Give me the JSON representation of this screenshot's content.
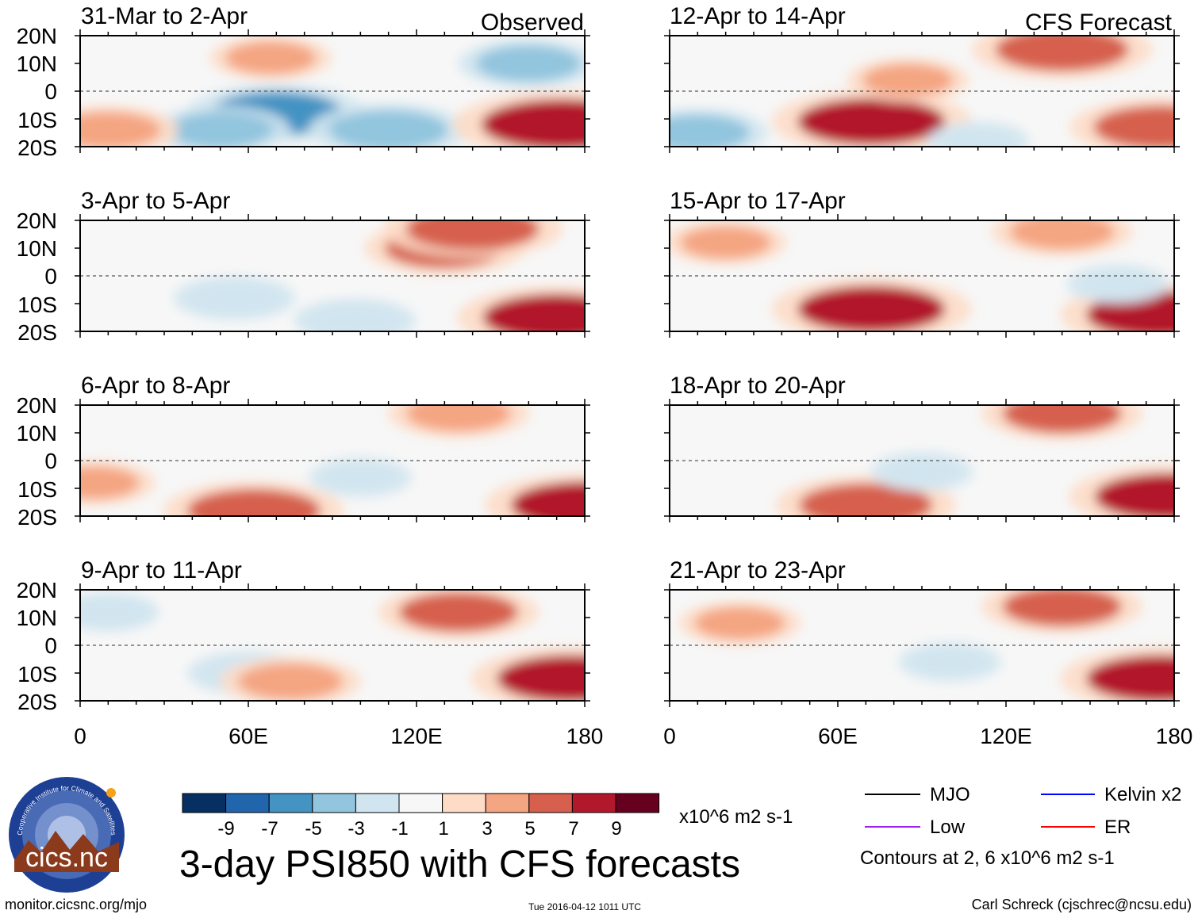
{
  "chart_data": {
    "type": "heatmap",
    "title": "3-day PSI850 with CFS forecasts",
    "column_headers": [
      "Observed",
      "CFS Forecast"
    ],
    "panels": [
      {
        "column": 0,
        "row": 0,
        "label": "31-Mar to 2-Apr"
      },
      {
        "column": 0,
        "row": 1,
        "label": "3-Apr to 5-Apr"
      },
      {
        "column": 0,
        "row": 2,
        "label": "6-Apr to 8-Apr"
      },
      {
        "column": 0,
        "row": 3,
        "label": "9-Apr to 11-Apr"
      },
      {
        "column": 1,
        "row": 0,
        "label": "12-Apr to 14-Apr"
      },
      {
        "column": 1,
        "row": 1,
        "label": "15-Apr to 17-Apr"
      },
      {
        "column": 1,
        "row": 2,
        "label": "18-Apr to 20-Apr"
      },
      {
        "column": 1,
        "row": 3,
        "label": "21-Apr to 23-Apr"
      }
    ],
    "x_ticks": [
      "0",
      "60E",
      "120E",
      "180"
    ],
    "x_values": [
      0,
      60,
      120,
      180
    ],
    "xlim": [
      0,
      180
    ],
    "y_ticks": [
      "20N",
      "10N",
      "0",
      "10S",
      "20S"
    ],
    "y_values": [
      20,
      10,
      0,
      -10,
      -20
    ],
    "ylim": [
      -20,
      20
    ],
    "colorbar": {
      "labels": [
        "-9",
        "-7",
        "-5",
        "-3",
        "-1",
        "1",
        "3",
        "5",
        "7",
        "9"
      ],
      "colors": [
        "#053061",
        "#2166ac",
        "#4393c3",
        "#92c5de",
        "#d1e5f0",
        "#f7f7f7",
        "#fddbc7",
        "#f4a582",
        "#d6604d",
        "#b2182b",
        "#67001f"
      ],
      "units": "x10^6 m2 s-1"
    },
    "features": [
      {
        "panel": 0,
        "x": 70,
        "y": -8,
        "value": -6
      },
      {
        "panel": 0,
        "x": 50,
        "y": -14,
        "value": -4
      },
      {
        "panel": 0,
        "x": 110,
        "y": -14,
        "value": -5
      },
      {
        "panel": 0,
        "x": 160,
        "y": 10,
        "value": -4
      },
      {
        "panel": 0,
        "x": 68,
        "y": 12,
        "value": 3
      },
      {
        "panel": 0,
        "x": 172,
        "y": -12,
        "value": 8
      },
      {
        "panel": 0,
        "x": 10,
        "y": -14,
        "value": 4
      },
      {
        "panel": 1,
        "x": 130,
        "y": 10,
        "value": 5
      },
      {
        "panel": 1,
        "x": 140,
        "y": 17,
        "value": 6
      },
      {
        "panel": 1,
        "x": 170,
        "y": -15,
        "value": 7
      },
      {
        "panel": 1,
        "x": 55,
        "y": -8,
        "value": -3
      },
      {
        "panel": 1,
        "x": 98,
        "y": -16,
        "value": -3
      },
      {
        "panel": 2,
        "x": 135,
        "y": 17,
        "value": 4
      },
      {
        "panel": 2,
        "x": 62,
        "y": -18,
        "value": 6
      },
      {
        "panel": 2,
        "x": 180,
        "y": -16,
        "value": 7
      },
      {
        "panel": 2,
        "x": 5,
        "y": -8,
        "value": 3
      },
      {
        "panel": 2,
        "x": 100,
        "y": -6,
        "value": -2
      },
      {
        "panel": 3,
        "x": 135,
        "y": 12,
        "value": 5
      },
      {
        "panel": 3,
        "x": 175,
        "y": -12,
        "value": 7
      },
      {
        "panel": 3,
        "x": 60,
        "y": -10,
        "value": -3
      },
      {
        "panel": 3,
        "x": 10,
        "y": 12,
        "value": -2
      },
      {
        "panel": 3,
        "x": 75,
        "y": -13,
        "value": 4
      },
      {
        "panel": 4,
        "x": 140,
        "y": 15,
        "value": 6
      },
      {
        "panel": 4,
        "x": 72,
        "y": -11,
        "value": 7
      },
      {
        "panel": 4,
        "x": 85,
        "y": 4,
        "value": 3
      },
      {
        "panel": 4,
        "x": 175,
        "y": -13,
        "value": 6
      },
      {
        "panel": 4,
        "x": 10,
        "y": -15,
        "value": -4
      },
      {
        "panel": 4,
        "x": 110,
        "y": -18,
        "value": -2
      },
      {
        "panel": 5,
        "x": 72,
        "y": -12,
        "value": 7
      },
      {
        "panel": 5,
        "x": 175,
        "y": -14,
        "value": 7
      },
      {
        "panel": 5,
        "x": 140,
        "y": 16,
        "value": 4
      },
      {
        "panel": 5,
        "x": 20,
        "y": 12,
        "value": 3
      },
      {
        "panel": 5,
        "x": 160,
        "y": -3,
        "value": -2
      },
      {
        "panel": 6,
        "x": 70,
        "y": -16,
        "value": 6
      },
      {
        "panel": 6,
        "x": 140,
        "y": 17,
        "value": 5
      },
      {
        "panel": 6,
        "x": 178,
        "y": -13,
        "value": 7
      },
      {
        "panel": 6,
        "x": 90,
        "y": -4,
        "value": -2
      },
      {
        "panel": 7,
        "x": 140,
        "y": 14,
        "value": 5
      },
      {
        "panel": 7,
        "x": 175,
        "y": -12,
        "value": 7
      },
      {
        "panel": 7,
        "x": 25,
        "y": 8,
        "value": 3
      },
      {
        "panel": 7,
        "x": 100,
        "y": -6,
        "value": -2
      }
    ]
  },
  "legend": {
    "entries": [
      {
        "label": "MJO",
        "color": "#000000"
      },
      {
        "label": "Kelvin x2",
        "color": "#0000ff"
      },
      {
        "label": "Low",
        "color": "#a020f0"
      },
      {
        "label": "ER",
        "color": "#ff0000"
      }
    ],
    "note": "Contours at 2, 6 x10^6 m2 s-1"
  },
  "logo": {
    "text": "cics.nc",
    "ring_text": "Cooperative Institute for Climate and Satellites"
  },
  "footer": {
    "left": "monitor.cicsnc.org/mjo",
    "center": "Tue 2016-04-12 1011 UTC",
    "right": "Carl Schreck (cjschrec@ncsu.edu)"
  }
}
